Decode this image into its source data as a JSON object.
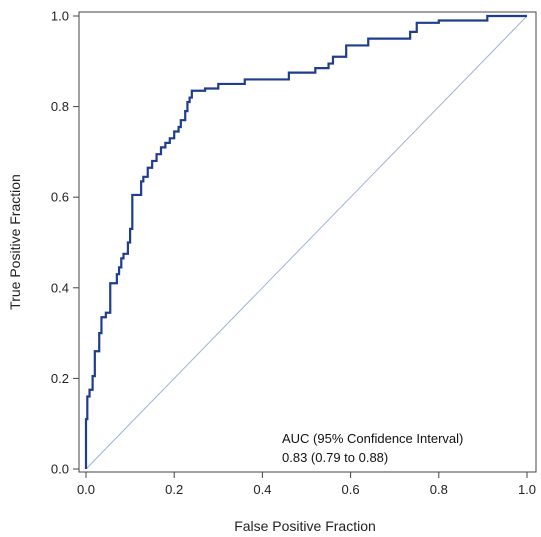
{
  "chart_data": {
    "type": "line",
    "xlabel": "False Positive Fraction",
    "ylabel": "True Positive Fraction",
    "xlim": [
      0,
      1
    ],
    "ylim": [
      0,
      1
    ],
    "xticks": [
      "0.0",
      "0.2",
      "0.4",
      "0.6",
      "0.8",
      "1.0"
    ],
    "yticks": [
      "0.0",
      "0.2",
      "0.4",
      "0.6",
      "0.8",
      "1.0"
    ],
    "grid": false,
    "annotation": {
      "line1": "AUC (95% Confidence Interval)",
      "line2": "0.83 (0.79 to 0.88)"
    },
    "series": [
      {
        "kind": "roc-curve",
        "color": "#1f3d8f",
        "points": [
          [
            0.0,
            0.0
          ],
          [
            0.0,
            0.11
          ],
          [
            0.003,
            0.11
          ],
          [
            0.003,
            0.16
          ],
          [
            0.008,
            0.16
          ],
          [
            0.008,
            0.175
          ],
          [
            0.015,
            0.175
          ],
          [
            0.015,
            0.205
          ],
          [
            0.02,
            0.205
          ],
          [
            0.02,
            0.26
          ],
          [
            0.03,
            0.26
          ],
          [
            0.03,
            0.3
          ],
          [
            0.035,
            0.3
          ],
          [
            0.035,
            0.335
          ],
          [
            0.045,
            0.335
          ],
          [
            0.045,
            0.345
          ],
          [
            0.055,
            0.345
          ],
          [
            0.055,
            0.41
          ],
          [
            0.07,
            0.41
          ],
          [
            0.07,
            0.43
          ],
          [
            0.075,
            0.43
          ],
          [
            0.075,
            0.445
          ],
          [
            0.08,
            0.445
          ],
          [
            0.08,
            0.465
          ],
          [
            0.085,
            0.465
          ],
          [
            0.085,
            0.475
          ],
          [
            0.095,
            0.475
          ],
          [
            0.095,
            0.5
          ],
          [
            0.1,
            0.5
          ],
          [
            0.1,
            0.53
          ],
          [
            0.105,
            0.53
          ],
          [
            0.105,
            0.605
          ],
          [
            0.125,
            0.605
          ],
          [
            0.125,
            0.635
          ],
          [
            0.13,
            0.635
          ],
          [
            0.13,
            0.645
          ],
          [
            0.14,
            0.645
          ],
          [
            0.14,
            0.665
          ],
          [
            0.15,
            0.665
          ],
          [
            0.15,
            0.68
          ],
          [
            0.16,
            0.68
          ],
          [
            0.16,
            0.695
          ],
          [
            0.17,
            0.695
          ],
          [
            0.17,
            0.71
          ],
          [
            0.18,
            0.71
          ],
          [
            0.18,
            0.72
          ],
          [
            0.19,
            0.72
          ],
          [
            0.19,
            0.73
          ],
          [
            0.2,
            0.73
          ],
          [
            0.2,
            0.745
          ],
          [
            0.21,
            0.745
          ],
          [
            0.21,
            0.755
          ],
          [
            0.215,
            0.755
          ],
          [
            0.215,
            0.77
          ],
          [
            0.225,
            0.77
          ],
          [
            0.225,
            0.79
          ],
          [
            0.23,
            0.79
          ],
          [
            0.23,
            0.81
          ],
          [
            0.235,
            0.81
          ],
          [
            0.235,
            0.82
          ],
          [
            0.24,
            0.82
          ],
          [
            0.24,
            0.835
          ],
          [
            0.27,
            0.835
          ],
          [
            0.27,
            0.84
          ],
          [
            0.3,
            0.84
          ],
          [
            0.3,
            0.85
          ],
          [
            0.36,
            0.85
          ],
          [
            0.36,
            0.86
          ],
          [
            0.46,
            0.86
          ],
          [
            0.46,
            0.875
          ],
          [
            0.52,
            0.875
          ],
          [
            0.52,
            0.885
          ],
          [
            0.55,
            0.885
          ],
          [
            0.55,
            0.895
          ],
          [
            0.56,
            0.895
          ],
          [
            0.56,
            0.91
          ],
          [
            0.59,
            0.91
          ],
          [
            0.59,
            0.935
          ],
          [
            0.64,
            0.935
          ],
          [
            0.64,
            0.95
          ],
          [
            0.735,
            0.95
          ],
          [
            0.735,
            0.965
          ],
          [
            0.75,
            0.965
          ],
          [
            0.75,
            0.985
          ],
          [
            0.8,
            0.985
          ],
          [
            0.8,
            0.99
          ],
          [
            0.91,
            0.99
          ],
          [
            0.91,
            1.0
          ],
          [
            1.0,
            1.0
          ]
        ]
      },
      {
        "kind": "reference-diagonal",
        "color": "#9fb3d6",
        "points": [
          [
            0,
            0
          ],
          [
            1,
            1
          ]
        ]
      }
    ]
  }
}
